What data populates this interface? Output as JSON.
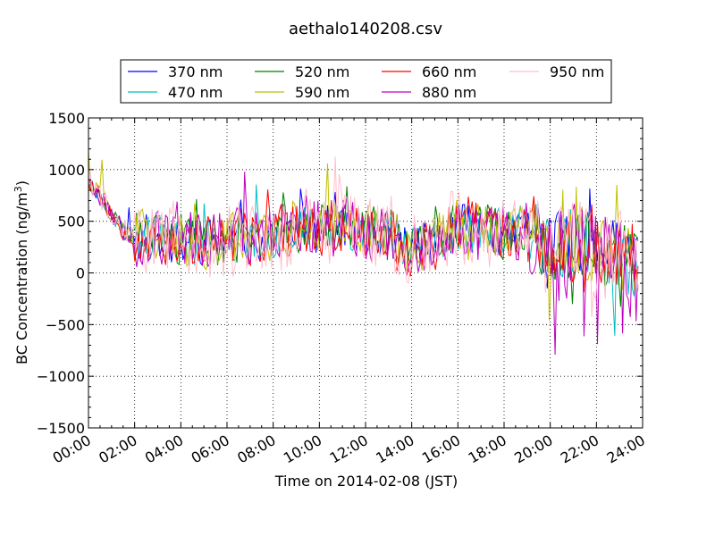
{
  "chart_data": {
    "type": "line",
    "title": "aethalo140208.csv",
    "xlabel": "Time on 2014-02-08 (JST)",
    "ylabel": "BC Concentration (ng/m",
    "ylabel_sup": "3",
    "ylabel_tail": ")",
    "xlim": [
      "2014-02-08 00:00",
      "2014-02-09 00:00"
    ],
    "ylim": [
      -1500,
      1500
    ],
    "grid": true,
    "legend_position": "top",
    "x_ticks": [
      "00:00",
      "02:00",
      "04:00",
      "06:00",
      "08:00",
      "10:00",
      "12:00",
      "14:00",
      "16:00",
      "18:00",
      "20:00",
      "22:00",
      "24:00"
    ],
    "y_ticks": [
      "1500",
      "1000",
      "500",
      "0",
      "−500",
      "−1000",
      "−1500"
    ],
    "y_tick_values": [
      1500,
      1000,
      500,
      0,
      -500,
      -1000,
      -1500
    ],
    "series": [
      {
        "name": "370 nm",
        "color": "#0000ff",
        "amp": 1.0,
        "seed": 11
      },
      {
        "name": "470 nm",
        "color": "#00bfbf",
        "amp": 1.0,
        "seed": 23
      },
      {
        "name": "520 nm",
        "color": "#008000",
        "amp": 1.05,
        "seed": 37
      },
      {
        "name": "590 nm",
        "color": "#bfbf00",
        "amp": 1.1,
        "seed": 41
      },
      {
        "name": "660 nm",
        "color": "#ff0000",
        "amp": 1.15,
        "seed": 53
      },
      {
        "name": "880 nm",
        "color": "#bf00bf",
        "amp": 1.25,
        "seed": 67
      },
      {
        "name": "950 nm",
        "color": "#ffc0cb",
        "amp": 1.6,
        "seed": 79
      }
    ],
    "trend_hours": [
      0,
      0.5,
      1,
      1.5,
      2,
      3,
      4,
      5,
      6,
      7,
      8,
      9,
      10,
      11,
      12,
      13,
      14,
      15,
      16,
      17,
      18,
      19,
      20,
      21,
      22,
      23,
      23.75
    ],
    "trend_values": [
      900,
      750,
      550,
      420,
      350,
      320,
      300,
      300,
      320,
      340,
      360,
      420,
      430,
      460,
      420,
      380,
      250,
      300,
      450,
      420,
      380,
      450,
      250,
      300,
      200,
      150,
      100
    ]
  }
}
